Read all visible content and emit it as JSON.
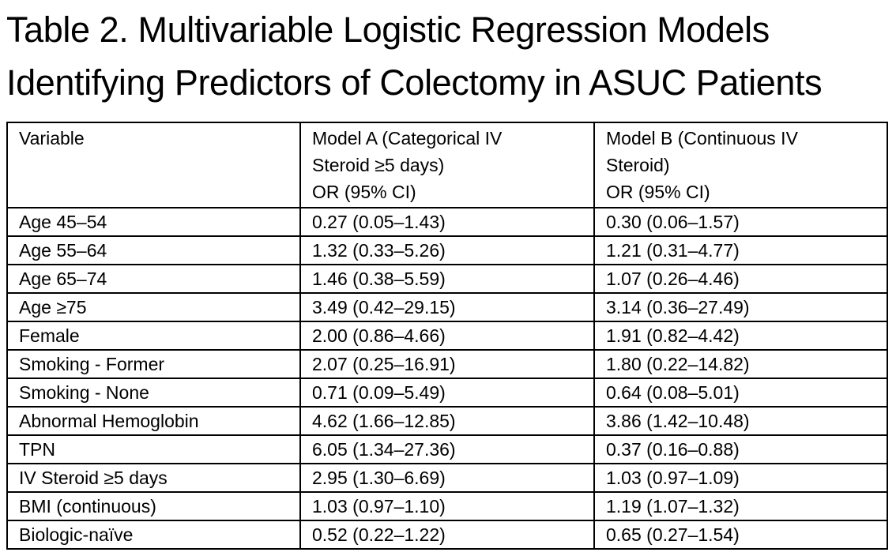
{
  "title": {
    "line1": "Table 2. Multivariable Logistic Regression Models",
    "line2": "Identifying Predictors of Colectomy in ASUC Patients"
  },
  "table": {
    "headers": {
      "variable": "Variable",
      "model_a_line1": "Model A (Categorical IV",
      "model_a_line2": "Steroid ≥5 days)",
      "model_a_line3": "OR (95% CI)",
      "model_b_line1": "Model B (Continuous IV",
      "model_b_line2": "Steroid)",
      "model_b_line3": "OR (95% CI)"
    },
    "rows": [
      {
        "variable": "Age 45–54",
        "model_a": "0.27 (0.05–1.43)",
        "model_b": "0.30 (0.06–1.57)"
      },
      {
        "variable": "Age 55–64",
        "model_a": "1.32 (0.33–5.26)",
        "model_b": "1.21 (0.31–4.77)"
      },
      {
        "variable": "Age 65–74",
        "model_a": "1.46 (0.38–5.59)",
        "model_b": "1.07 (0.26–4.46)"
      },
      {
        "variable": "Age ≥75",
        "model_a": "3.49 (0.42–29.15)",
        "model_b": "3.14 (0.36–27.49)"
      },
      {
        "variable": "Female",
        "model_a": "2.00 (0.86–4.66)",
        "model_b": "1.91 (0.82–4.42)"
      },
      {
        "variable": "Smoking - Former",
        "model_a": "2.07 (0.25–16.91)",
        "model_b": "1.80 (0.22–14.82)"
      },
      {
        "variable": "Smoking - None",
        "model_a": "0.71 (0.09–5.49)",
        "model_b": "0.64 (0.08–5.01)"
      },
      {
        "variable": "Abnormal Hemoglobin",
        "model_a": "4.62 (1.66–12.85)",
        "model_b": "3.86 (1.42–10.48)"
      },
      {
        "variable": "TPN",
        "model_a": "6.05 (1.34–27.36)",
        "model_b": "0.37 (0.16–0.88)"
      },
      {
        "variable": "IV Steroid ≥5 days",
        "model_a": "2.95 (1.30–6.69)",
        "model_b": "1.03 (0.97–1.09)"
      },
      {
        "variable": "BMI (continuous)",
        "model_a": "1.03 (0.97–1.10)",
        "model_b": "1.19 (1.07–1.32)"
      },
      {
        "variable": "Biologic-naïve",
        "model_a": "0.52 (0.22–1.22)",
        "model_b": "0.65 (0.27–1.54)"
      }
    ]
  }
}
